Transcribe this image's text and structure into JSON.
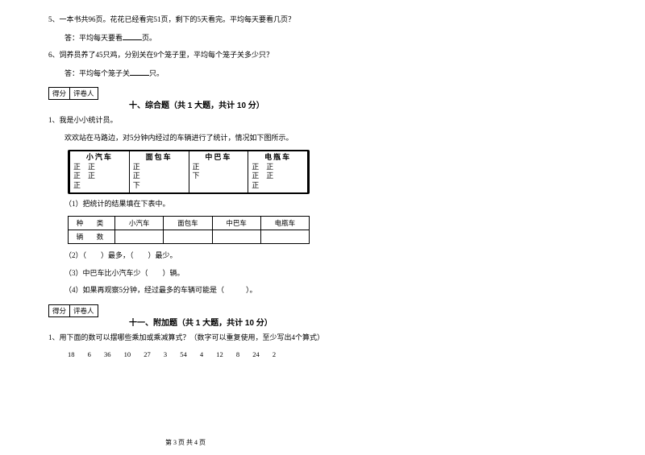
{
  "q5": {
    "text": "5、一本书共96页。花花已经看完51页，剩下的5天看完。平均每天要看几页？",
    "answer_prefix": "答：平均每天要看",
    "answer_suffix": "页。"
  },
  "q6": {
    "text": "6、饲养员养了45只鸡，分别关在9个笼子里，平均每个笼子关多少只？",
    "answer_prefix": "答：平均每个笼子关",
    "answer_suffix": "只。"
  },
  "score_labels": {
    "left": "得分",
    "right": "评卷人"
  },
  "section10": {
    "title": "十、综合题（共 1 大题，共计 10 分）",
    "intro1": "1、我是小小统计员。",
    "intro2": "欢欢站在马路边，对5分钟内经过的车辆进行了统计，情况如下图所示。",
    "tally": [
      {
        "name": "小汽车",
        "rows": [
          "正　正",
          "正　正",
          "正"
        ]
      },
      {
        "name": "面包车",
        "rows": [
          "正",
          "正",
          "下"
        ]
      },
      {
        "name": "中巴车",
        "rows": [
          "正",
          "下",
          ""
        ]
      },
      {
        "name": "电瓶车",
        "rows": [
          "正　正",
          "正　正",
          "正"
        ]
      }
    ],
    "sub1": "（1）把统计的结果填在下表中。",
    "table_headers": [
      "种　类",
      "小汽车",
      "面包车",
      "中巴车",
      "电瓶车"
    ],
    "table_row_label": "辆　数",
    "sub2": "（2）（　　）最多，（　　）最少。",
    "sub3": "（3）中巴车比小汽车少（　　）辆。",
    "sub4": "（4）如果再观察5分钟，经过最多的车辆可能是（　　　）。"
  },
  "section11": {
    "title": "十一、附加题（共 1 大题，共计 10 分）",
    "q1": "1、用下面的数可以摆哪些乘加或乘减算式？（数字可以重复使用，至少写出4个算式）",
    "numbers": [
      "18",
      "6",
      "36",
      "10",
      "27",
      "3",
      "54",
      "4",
      "12",
      "8",
      "24",
      "2"
    ]
  },
  "footer": "第 3 页 共 4 页"
}
